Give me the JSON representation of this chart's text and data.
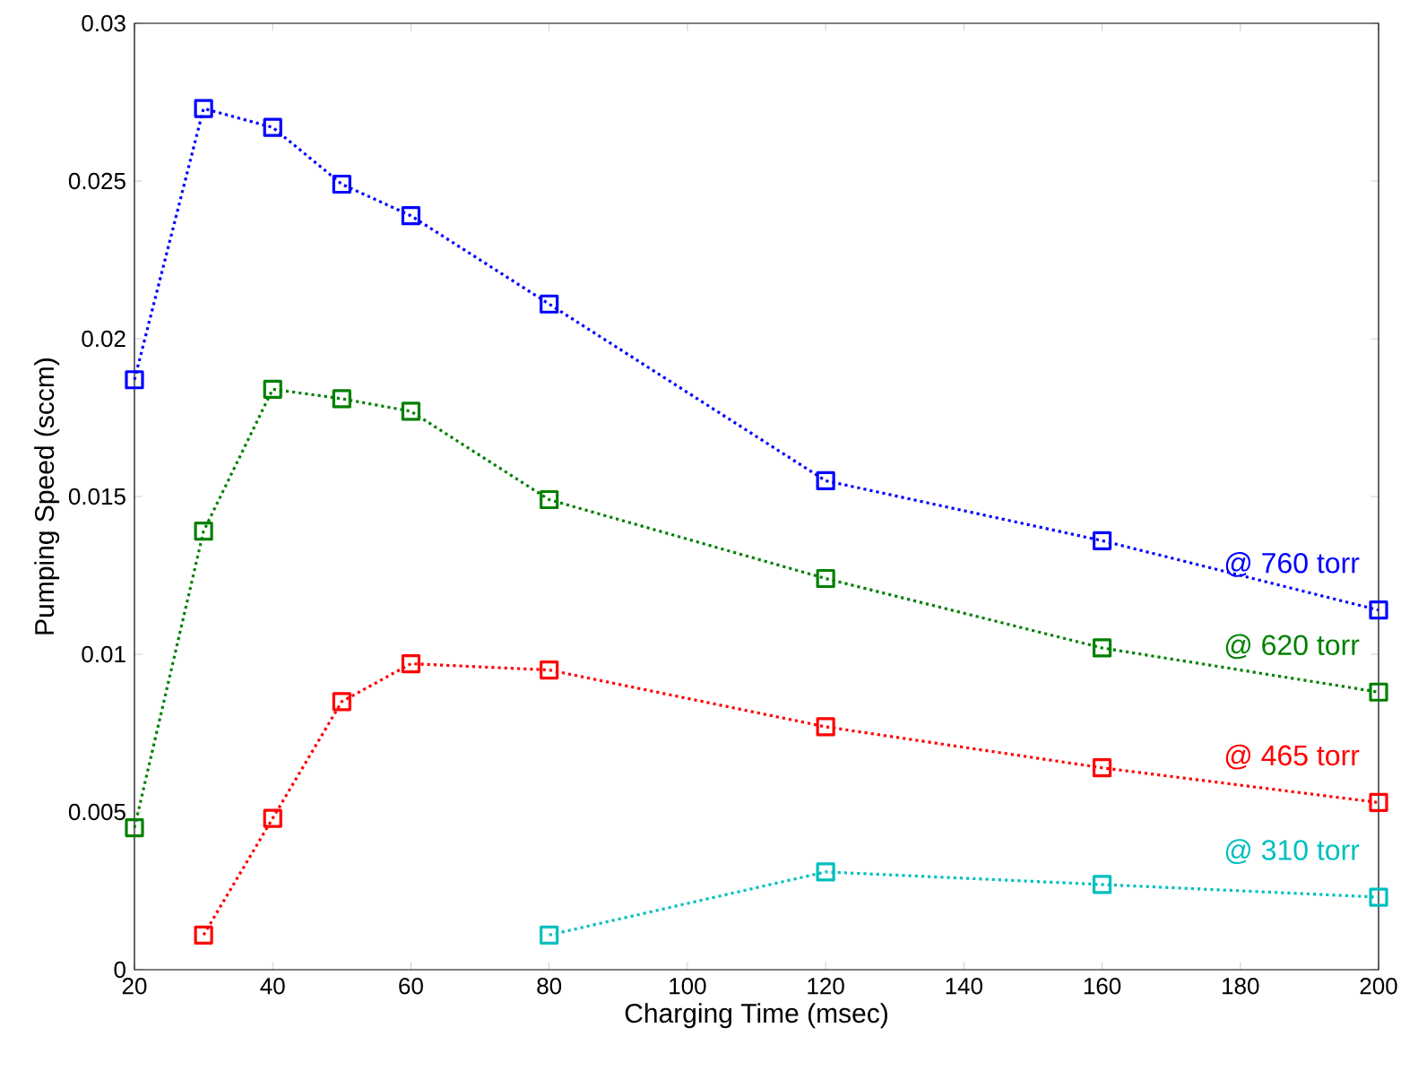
{
  "chart_data": {
    "type": "line",
    "xlabel": "Charging Time (msec)",
    "ylabel": "Pumping Speed (sccm)",
    "x": [
      20,
      30,
      40,
      50,
      60,
      80,
      120,
      160,
      200
    ],
    "series": [
      {
        "name": "@ 760 torr",
        "color": "#0000ff",
        "values": [
          0.0187,
          0.0273,
          0.0267,
          0.0249,
          0.0239,
          0.0211,
          0.0155,
          0.0136,
          0.0114
        ]
      },
      {
        "name": "@ 620 torr",
        "color": "#008000",
        "values": [
          0.0045,
          0.0139,
          0.0184,
          0.0181,
          0.0177,
          0.0149,
          0.0124,
          0.0102,
          0.0088
        ]
      },
      {
        "name": "@ 465 torr",
        "color": "#ff0000",
        "values": [
          null,
          0.0011,
          0.0048,
          0.0085,
          0.0097,
          0.0095,
          0.0077,
          0.0064,
          0.0053
        ]
      },
      {
        "name": "@ 310 torr",
        "color": "#00bfbf",
        "values": [
          null,
          null,
          null,
          null,
          null,
          0.0011,
          0.0031,
          0.0027,
          0.0023
        ]
      }
    ],
    "xlim": [
      20,
      200
    ],
    "ylim": [
      0,
      0.03
    ],
    "xticks": [
      20,
      40,
      60,
      80,
      100,
      120,
      140,
      160,
      180,
      200
    ],
    "yticks": [
      0,
      0.005,
      0.01,
      0.015,
      0.02,
      0.025,
      0.03
    ],
    "marker": "square",
    "line_style": "dotted"
  }
}
